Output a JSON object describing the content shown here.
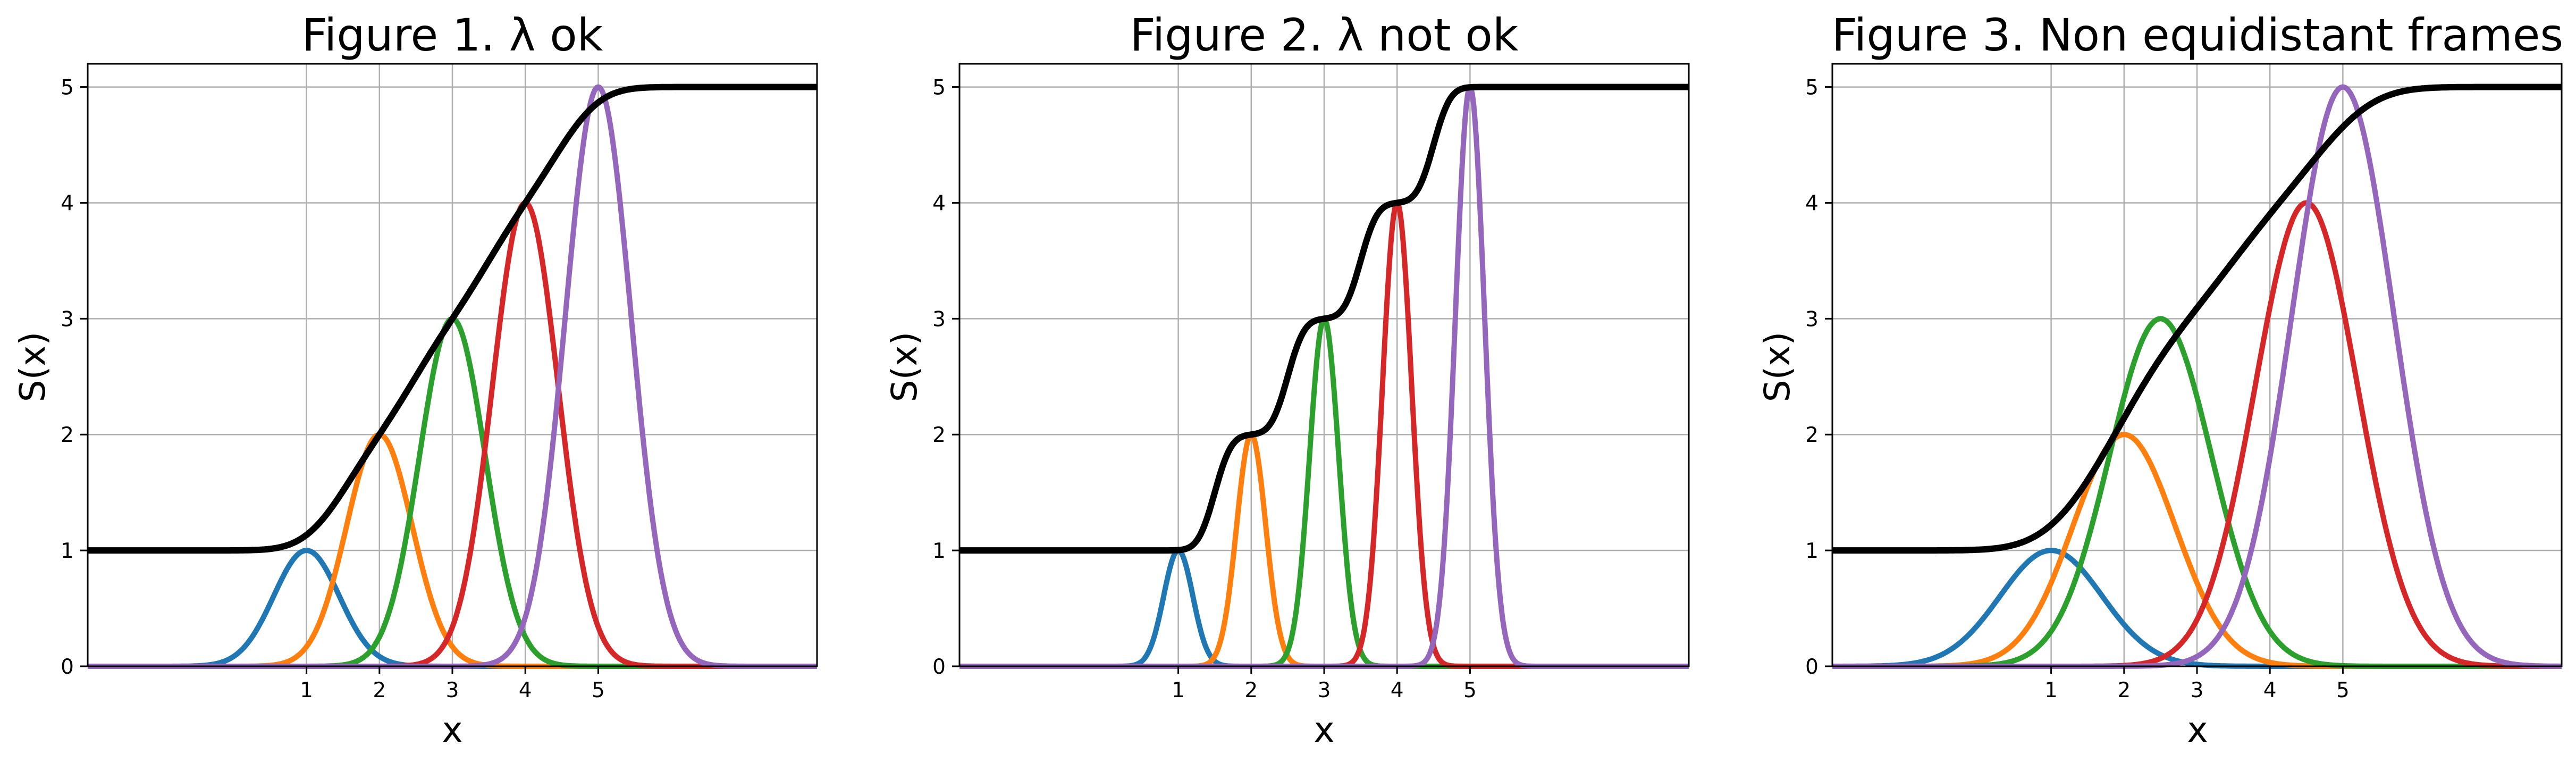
{
  "colors": {
    "blue": "#1f77b4",
    "orange": "#ff7f0e",
    "green": "#2ca02c",
    "red": "#d62728",
    "purple": "#9467bd",
    "sum": "#000000",
    "grid": "#b0b0b0"
  },
  "chart_data": [
    {
      "type": "line",
      "title": "Figure 1. λ ok",
      "xlabel": "x",
      "ylabel": "S(x)",
      "xlim": [
        -2,
        8
      ],
      "ylim": [
        0,
        5.2
      ],
      "xticks": [
        1,
        2,
        3,
        4,
        5
      ],
      "yticks": [
        0,
        1,
        2,
        3,
        4,
        5
      ],
      "grid": true,
      "legend": "none",
      "gaussians": [
        {
          "center": 1,
          "amplitude": 1,
          "sigma": 0.45,
          "color": "blue"
        },
        {
          "center": 2,
          "amplitude": 2,
          "sigma": 0.45,
          "color": "orange"
        },
        {
          "center": 3,
          "amplitude": 3,
          "sigma": 0.45,
          "color": "green"
        },
        {
          "center": 4,
          "amplitude": 4,
          "sigma": 0.45,
          "color": "red"
        },
        {
          "center": 5,
          "amplitude": 5,
          "sigma": 0.45,
          "color": "purple"
        }
      ],
      "sum_curve": {
        "color": "sum",
        "base": 1,
        "step_sigma": 0.45
      }
    },
    {
      "type": "line",
      "title": "Figure 2. λ not ok",
      "xlabel": "x",
      "ylabel": "S(x)",
      "xlim": [
        -2,
        8
      ],
      "ylim": [
        0,
        5.2
      ],
      "xticks": [
        1,
        2,
        3,
        4,
        5
      ],
      "yticks": [
        0,
        1,
        2,
        3,
        4,
        5
      ],
      "grid": true,
      "legend": "none",
      "gaussians": [
        {
          "center": 1,
          "amplitude": 1,
          "sigma": 0.2,
          "color": "blue"
        },
        {
          "center": 2,
          "amplitude": 2,
          "sigma": 0.2,
          "color": "orange"
        },
        {
          "center": 3,
          "amplitude": 3,
          "sigma": 0.2,
          "color": "green"
        },
        {
          "center": 4,
          "amplitude": 4,
          "sigma": 0.2,
          "color": "red"
        },
        {
          "center": 5,
          "amplitude": 5,
          "sigma": 0.2,
          "color": "purple"
        }
      ],
      "sum_curve": {
        "color": "sum",
        "base": 1,
        "step_sigma": 0.18
      }
    },
    {
      "type": "line",
      "title": "Figure 3. Non equidistant frames",
      "xlabel": "x",
      "ylabel": "S(x)",
      "xlim": [
        -2,
        8
      ],
      "ylim": [
        0,
        5.2
      ],
      "xticks": [
        1,
        2,
        3,
        4,
        5
      ],
      "yticks": [
        0,
        1,
        2,
        3,
        4,
        5
      ],
      "grid": true,
      "legend": "none",
      "gaussians": [
        {
          "center": 1,
          "amplitude": 1,
          "sigma": 0.7,
          "color": "blue"
        },
        {
          "center": 2,
          "amplitude": 2,
          "sigma": 0.7,
          "color": "orange"
        },
        {
          "center": 2.5,
          "amplitude": 3,
          "sigma": 0.7,
          "color": "green"
        },
        {
          "center": 4.5,
          "amplitude": 4,
          "sigma": 0.7,
          "color": "red"
        },
        {
          "center": 5,
          "amplitude": 5,
          "sigma": 0.7,
          "color": "purple"
        }
      ],
      "sum_curve": {
        "color": "sum",
        "base": 1,
        "step_sigma": 0.6
      }
    }
  ]
}
